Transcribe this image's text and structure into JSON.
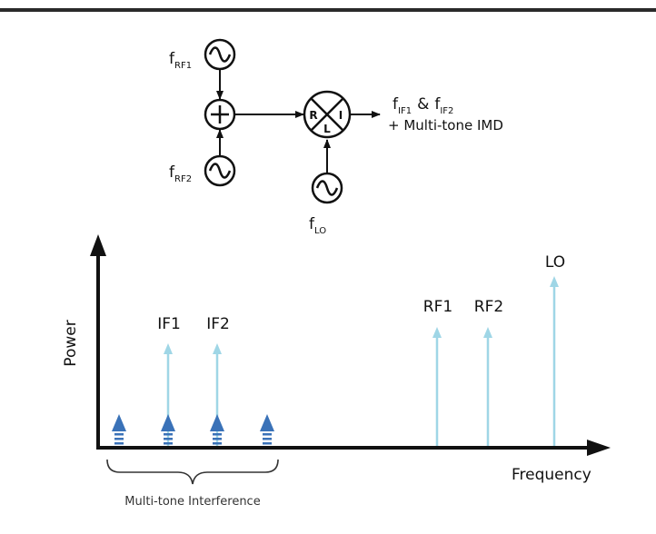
{
  "colors": {
    "ink": "#111111",
    "light_arrow": "#9fd6e6",
    "dark_arrow": "#3a72b8"
  },
  "circuit": {
    "rf1_label": {
      "base": "f",
      "sub": "RF1"
    },
    "rf2_label": {
      "base": "f",
      "sub": "RF2"
    },
    "lo_label": {
      "base": "f",
      "sub": "LO"
    },
    "output_line1": {
      "f1": "f",
      "sub1": "IF1",
      "amp": "&",
      "f2": "f",
      "sub2": "IF2"
    },
    "output_line2": "+ Multi-tone IMD",
    "mixer_ports": {
      "r": "R",
      "i": "I",
      "l": "L"
    },
    "icons": [
      "rf1-source-icon",
      "rf2-source-icon",
      "lo-source-icon",
      "summer-icon",
      "mixer-icon"
    ]
  },
  "spectrum": {
    "y_axis_label": "Power",
    "x_axis_label": "Frequency",
    "tones": [
      {
        "label": "IF1",
        "kind": "light",
        "level": 0.54
      },
      {
        "label": "IF2",
        "kind": "light",
        "level": 0.54
      },
      {
        "label": "RF1",
        "kind": "light",
        "level": 0.6
      },
      {
        "label": "RF2",
        "kind": "light",
        "level": 0.6
      },
      {
        "label": "LO",
        "kind": "light",
        "level": 0.87
      }
    ],
    "interference_markers": 4,
    "brace_label": "Multi-tone Interference"
  }
}
